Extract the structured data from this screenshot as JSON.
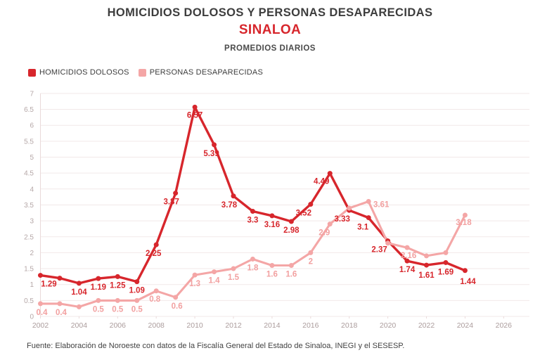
{
  "header": {
    "title": "HOMICIDIOS DOLOSOS Y PERSONAS DESAPARECIDAS",
    "region": "SINALOA",
    "caption": "PROMEDIOS DIARIOS"
  },
  "legend": {
    "items": [
      {
        "label": "HOMICIDIOS DOLOSOS",
        "color": "#d7262c"
      },
      {
        "label": "PERSONAS DESAPARECIDAS",
        "color": "#f4a6a6"
      }
    ]
  },
  "footer": {
    "source": "Fuente: Elaboración de Noroeste con datos de la Fiscalía General del Estado de Sinaloa, INEGI y el SESESP."
  },
  "colors": {
    "accent_red": "#d7262c",
    "accent_pink": "#f4a6a6",
    "pink_label": "#f2a0a0",
    "grid": "#f2e9e9",
    "axis_line": "#eadada",
    "axis_text": "#b5a7a7",
    "title_text": "#3d3d3d"
  },
  "chart_data": {
    "type": "line",
    "title": "HOMICIDIOS DOLOSOS Y PERSONAS DESAPARECIDAS",
    "subtitle": "SINALOA",
    "caption": "PROMEDIOS DIARIOS",
    "xlabel": "",
    "ylabel": "",
    "grid": true,
    "legend_position": "top-left",
    "xlim": [
      2002,
      2026
    ],
    "ylim": [
      0,
      7
    ],
    "x_ticks": [
      2002,
      2004,
      2006,
      2008,
      2010,
      2012,
      2014,
      2016,
      2018,
      2020,
      2022,
      2024,
      2026
    ],
    "y_ticks": [
      0,
      0.5,
      1,
      1.5,
      2,
      2.5,
      3,
      3.5,
      4,
      4.5,
      5,
      5.5,
      6,
      6.5,
      7
    ],
    "y_tick_labels": [
      "0",
      "0.5",
      "1",
      "1.5",
      "2",
      "2.5",
      "3",
      "3.5",
      "4",
      "4.5",
      "5",
      "5.5",
      "6",
      "6.5",
      "7"
    ],
    "x": [
      2002,
      2003,
      2004,
      2005,
      2006,
      2007,
      2008,
      2009,
      2010,
      2011,
      2012,
      2013,
      2014,
      2015,
      2016,
      2017,
      2018,
      2019,
      2020,
      2021,
      2022,
      2023,
      2024
    ],
    "series": [
      {
        "name": "HOMICIDIOS DOLOSOS",
        "color": "#d7262c",
        "label_color": "#d7262c",
        "values": [
          1.29,
          1.2,
          1.04,
          1.19,
          1.25,
          1.09,
          2.25,
          3.87,
          6.57,
          5.39,
          3.78,
          3.3,
          3.16,
          2.98,
          3.52,
          4.49,
          3.33,
          3.1,
          2.37,
          1.74,
          1.61,
          1.69,
          1.44
        ],
        "point_labels": [
          "1.29",
          "",
          "1.04",
          "1.19",
          "1.25",
          "1.09",
          "2.25",
          "3.87",
          "6.57",
          "5.39",
          "3.78",
          "3.3",
          "3.16",
          "2.98",
          "3.52",
          "4.49",
          "3.33",
          "3.1",
          "2.37",
          "1.74",
          "1.61",
          "1.69",
          "1.44"
        ]
      },
      {
        "name": "PERSONAS DESAPARECIDAS",
        "color": "#f4a6a6",
        "label_color": "#f2a0a0",
        "values": [
          0.4,
          0.4,
          0.3,
          0.5,
          0.5,
          0.5,
          0.8,
          0.6,
          1.3,
          1.4,
          1.5,
          1.8,
          1.6,
          1.6,
          2,
          2.9,
          3.4,
          3.61,
          2.3,
          2.16,
          1.9,
          2.0,
          3.18
        ],
        "point_labels": [
          "0.4",
          "0.4",
          "",
          "0.5",
          "0.5",
          "0.5",
          "0.8",
          "0.6",
          "1.3",
          "1.4",
          "1.5",
          "1.8",
          "1.6",
          "1.6",
          "2",
          "2.9",
          "",
          "3.61",
          "",
          "2.16",
          "",
          "",
          "3.18"
        ]
      }
    ],
    "label_offsets": {
      "0": {
        "2002": [
          12,
          16
        ],
        "2008": [
          -4,
          16
        ],
        "2009": [
          -6,
          16
        ],
        "2010": [
          0,
          15
        ],
        "2011": [
          -4,
          16
        ],
        "2012": [
          -6,
          16
        ],
        "2016": [
          -10,
          16
        ],
        "2017": [
          -12,
          15
        ],
        "2018": [
          -10,
          16
        ],
        "2019": [
          -8,
          17
        ],
        "2020": [
          -12,
          16
        ],
        "2022": [
          0,
          18
        ],
        "2023": [
          0,
          17
        ],
        "2024": [
          4,
          19
        ]
      },
      "1": {
        "2002": [
          2,
          16
        ],
        "2003": [
          2,
          16
        ],
        "2008": [
          -2,
          15
        ],
        "2009": [
          2,
          16
        ],
        "2017": [
          -8,
          16
        ],
        "2019": [
          18,
          8
        ],
        "2021": [
          2,
          15
        ],
        "2024": [
          -2,
          14
        ]
      }
    }
  }
}
